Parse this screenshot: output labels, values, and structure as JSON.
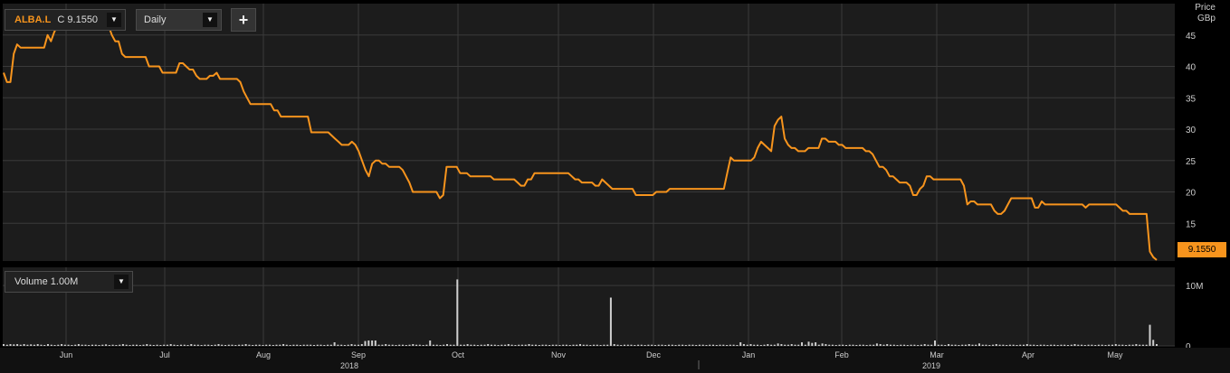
{
  "toolbar": {
    "symbol": "ALBA.L",
    "close_label": "C",
    "close_value": "9.1550",
    "interval": "Daily",
    "add_label": "+",
    "dropdown_glyph": "▼"
  },
  "volume_panel": {
    "label": "Volume",
    "scale": "1.00M"
  },
  "price_axis": {
    "title": "Price",
    "unit": "GBp"
  },
  "last_price_tag": "9.1550",
  "colors": {
    "price_line": "#f7941d",
    "background": "#1c1c1c",
    "grid": "#3a3a3a",
    "volume_bar": "#cfcfcf"
  },
  "chart_data": [
    {
      "type": "line",
      "title": "",
      "series": [
        {
          "name": "ALBA.L",
          "values": [
            39.0,
            37.5,
            37.5,
            42.0,
            43.5,
            43.0,
            43.0,
            43.0,
            43.0,
            43.0,
            43.0,
            43.0,
            43.0,
            45.0,
            44.0,
            45.5,
            46.5,
            47.0,
            46.0,
            46.0,
            46.0,
            46.5,
            46.5,
            46.5,
            46.5,
            46.5,
            46.5,
            46.5,
            46.5,
            46.5,
            46.5,
            46.5,
            45.0,
            44.0,
            44.0,
            42.0,
            41.5,
            41.5,
            41.5,
            41.5,
            41.5,
            41.5,
            41.5,
            40.0,
            40.0,
            40.0,
            40.0,
            39.0,
            39.0,
            39.0,
            39.0,
            39.0,
            40.5,
            40.5,
            40.0,
            39.5,
            39.5,
            38.5,
            38.0,
            38.0,
            38.0,
            38.5,
            38.5,
            39.0,
            38.0,
            38.0,
            38.0,
            38.0,
            38.0,
            38.0,
            37.5,
            36.0,
            35.0,
            34.0,
            34.0,
            34.0,
            34.0,
            34.0,
            34.0,
            34.0,
            33.0,
            33.0,
            32.0,
            32.0,
            32.0,
            32.0,
            32.0,
            32.0,
            32.0,
            32.0,
            32.0,
            29.5,
            29.5,
            29.5,
            29.5,
            29.5,
            29.5,
            29.0,
            28.5,
            28.0,
            27.5,
            27.5,
            27.5,
            28.0,
            27.5,
            26.5,
            25.0,
            23.5,
            22.5,
            24.5,
            25.0,
            25.0,
            24.5,
            24.5,
            24.0,
            24.0,
            24.0,
            24.0,
            23.5,
            22.5,
            21.5,
            20.0,
            20.0,
            20.0,
            20.0,
            20.0,
            20.0,
            20.0,
            20.0,
            19.0,
            19.5,
            24.0,
            24.0,
            24.0,
            24.0,
            23.0,
            23.0,
            23.0,
            22.5,
            22.5,
            22.5,
            22.5,
            22.5,
            22.5,
            22.5,
            22.0,
            22.0,
            22.0,
            22.0,
            22.0,
            22.0,
            22.0,
            21.5,
            21.0,
            21.0,
            22.0,
            22.0,
            23.0,
            23.0,
            23.0,
            23.0,
            23.0,
            23.0,
            23.0,
            23.0,
            23.0,
            23.0,
            23.0,
            22.5,
            22.0,
            22.0,
            21.5,
            21.5,
            21.5,
            21.5,
            21.0,
            21.0,
            22.0,
            21.5,
            21.0,
            20.5,
            20.5,
            20.5,
            20.5,
            20.5,
            20.5,
            20.5,
            19.5,
            19.5,
            19.5,
            19.5,
            19.5,
            19.5,
            20.0,
            20.0,
            20.0,
            20.0,
            20.5,
            20.5,
            20.5,
            20.5,
            20.5,
            20.5,
            20.5,
            20.5,
            20.5,
            20.5,
            20.5,
            20.5,
            20.5,
            20.5,
            20.5,
            20.5,
            20.5,
            23.0,
            25.5,
            25.0,
            25.0,
            25.0,
            25.0,
            25.0,
            25.0,
            25.5,
            27.0,
            28.0,
            27.5,
            27.0,
            26.5,
            30.5,
            31.5,
            32.0,
            28.5,
            27.5,
            27.0,
            27.0,
            26.5,
            26.5,
            26.5,
            27.0,
            27.0,
            27.0,
            27.0,
            28.5,
            28.5,
            28.0,
            28.0,
            28.0,
            27.5,
            27.5,
            27.0,
            27.0,
            27.0,
            27.0,
            27.0,
            27.0,
            26.5,
            26.5,
            26.0,
            25.0,
            24.0,
            24.0,
            23.5,
            22.5,
            22.5,
            22.0,
            21.5,
            21.5,
            21.5,
            21.0,
            19.5,
            19.5,
            20.5,
            21.0,
            22.5,
            22.5,
            22.0,
            22.0,
            22.0,
            22.0,
            22.0,
            22.0,
            22.0,
            22.0,
            22.0,
            21.0,
            18.0,
            18.5,
            18.5,
            18.0,
            18.0,
            18.0,
            18.0,
            18.0,
            17.0,
            16.5,
            16.5,
            17.0,
            18.0,
            19.0,
            19.0,
            19.0,
            19.0,
            19.0,
            19.0,
            19.0,
            17.5,
            17.5,
            18.5,
            18.0,
            18.0,
            18.0,
            18.0,
            18.0,
            18.0,
            18.0,
            18.0,
            18.0,
            18.0,
            18.0,
            18.0,
            17.5,
            18.0,
            18.0,
            18.0,
            18.0,
            18.0,
            18.0,
            18.0,
            18.0,
            18.0,
            17.5,
            17.0,
            17.0,
            16.5,
            16.5,
            16.5,
            16.5,
            16.5,
            16.5,
            10.5,
            9.6,
            9.155
          ]
        }
      ],
      "x_labels": [
        "Jun",
        "Jul",
        "Aug",
        "Sep",
        "Oct",
        "Nov",
        "Dec",
        "Jan",
        "Feb",
        "Mar",
        "Apr",
        "May"
      ],
      "x_year_labels": [
        "2018",
        "2019"
      ],
      "y_ticks": [
        15,
        20,
        25,
        30,
        35,
        40,
        45
      ],
      "ylim": [
        9,
        50
      ],
      "ylabel": "Price GBp",
      "grid": true
    },
    {
      "type": "bar",
      "title": "",
      "series": [
        {
          "name": "Volume",
          "values": [
            0.3,
            0.2,
            0.3,
            0.25,
            0.3,
            0.2,
            0.3,
            0.2,
            0.25,
            0.2,
            0.3,
            0.2,
            0.15,
            0.3,
            0.2,
            0.15,
            0.2,
            0.3,
            0.2,
            0.2,
            0.15,
            0.2,
            0.3,
            0.2,
            0.2,
            0.15,
            0.2,
            0.2,
            0.15,
            0.2,
            0.25,
            0.15,
            0.2,
            0.15,
            0.2,
            0.3,
            0.2,
            0.15,
            0.2,
            0.2,
            0.15,
            0.2,
            0.3,
            0.2,
            0.15,
            0.2,
            0.15,
            0.2,
            0.2,
            0.3,
            0.2,
            0.15,
            0.2,
            0.2,
            0.15,
            0.3,
            0.2,
            0.2,
            0.15,
            0.2,
            0.2,
            0.15,
            0.2,
            0.3,
            0.2,
            0.15,
            0.2,
            0.2,
            0.15,
            0.2,
            0.2,
            0.3,
            0.2,
            0.15,
            0.2,
            0.2,
            0.15,
            0.2,
            0.2,
            0.15,
            0.2,
            0.2,
            0.3,
            0.2,
            0.15,
            0.2,
            0.2,
            0.15,
            0.2,
            0.2,
            0.2,
            0.15,
            0.2,
            0.2,
            0.15,
            0.2,
            0.2,
            0.6,
            0.2,
            0.2,
            0.15,
            0.2,
            0.3,
            0.2,
            0.2,
            0.3,
            0.8,
            0.9,
            0.9,
            0.9,
            0.2,
            0.2,
            0.3,
            0.2,
            0.2,
            0.15,
            0.2,
            0.2,
            0.15,
            0.2,
            0.3,
            0.2,
            0.2,
            0.15,
            0.2,
            0.9,
            0.2,
            0.2,
            0.15,
            0.2,
            0.3,
            0.2,
            0.2,
            11.0,
            0.2,
            0.2,
            0.3,
            0.2,
            0.2,
            0.15,
            0.2,
            0.2,
            0.3,
            0.2,
            0.2,
            0.15,
            0.2,
            0.2,
            0.3,
            0.2,
            0.15,
            0.2,
            0.2,
            0.2,
            0.3,
            0.2,
            0.2,
            0.15,
            0.2,
            0.2,
            0.15,
            0.2,
            0.2,
            0.15,
            0.2,
            0.2,
            0.15,
            0.2,
            0.2,
            0.3,
            0.2,
            0.2,
            0.15,
            0.2,
            0.2,
            0.15,
            0.2,
            0.2,
            8.0,
            0.3,
            0.2,
            0.15,
            0.2,
            0.2,
            0.2,
            0.15,
            0.2,
            0.2,
            0.15,
            0.2,
            0.2,
            0.15,
            0.2,
            0.2,
            0.15,
            0.2,
            0.2,
            0.15,
            0.2,
            0.2,
            0.15,
            0.2,
            0.2,
            0.15,
            0.2,
            0.2,
            0.15,
            0.2,
            0.2,
            0.15,
            0.2,
            0.2,
            0.15,
            0.2,
            0.2,
            0.15,
            0.6,
            0.3,
            0.2,
            0.3,
            0.2,
            0.2,
            0.15,
            0.2,
            0.3,
            0.2,
            0.2,
            0.4,
            0.3,
            0.2,
            0.2,
            0.3,
            0.2,
            0.2,
            0.6,
            0.2,
            0.7,
            0.5,
            0.6,
            0.2,
            0.4,
            0.3,
            0.2,
            0.2,
            0.15,
            0.2,
            0.2,
            0.15,
            0.2,
            0.2,
            0.15,
            0.2,
            0.2,
            0.15,
            0.2,
            0.2,
            0.4,
            0.3,
            0.2,
            0.3,
            0.2,
            0.2,
            0.15,
            0.2,
            0.2,
            0.15,
            0.2,
            0.2,
            0.15,
            0.2,
            0.3,
            0.2,
            0.2,
            0.9,
            0.2,
            0.2,
            0.15,
            0.3,
            0.2,
            0.2,
            0.15,
            0.2,
            0.2,
            0.3,
            0.2,
            0.2,
            0.4,
            0.2,
            0.2,
            0.15,
            0.2,
            0.3,
            0.2,
            0.2,
            0.15,
            0.2,
            0.2,
            0.15,
            0.2,
            0.2,
            0.3,
            0.2,
            0.2,
            0.15,
            0.2,
            0.2,
            0.15,
            0.2,
            0.2,
            0.15,
            0.2,
            0.2,
            0.15,
            0.2,
            0.3,
            0.2,
            0.2,
            0.15,
            0.2,
            0.2,
            0.15,
            0.2,
            0.2,
            0.15,
            0.2,
            0.2,
            0.3,
            0.2,
            0.2,
            0.15,
            0.2,
            0.2,
            0.3,
            0.2,
            0.2,
            0.2,
            3.5,
            1.0,
            0.3
          ]
        }
      ],
      "y_ticks": [
        {
          "value": 0,
          "label": "0"
        },
        {
          "value": 10,
          "label": "10M"
        }
      ],
      "ylim": [
        0,
        13
      ],
      "ylabel": "Volume",
      "grid": true
    }
  ]
}
